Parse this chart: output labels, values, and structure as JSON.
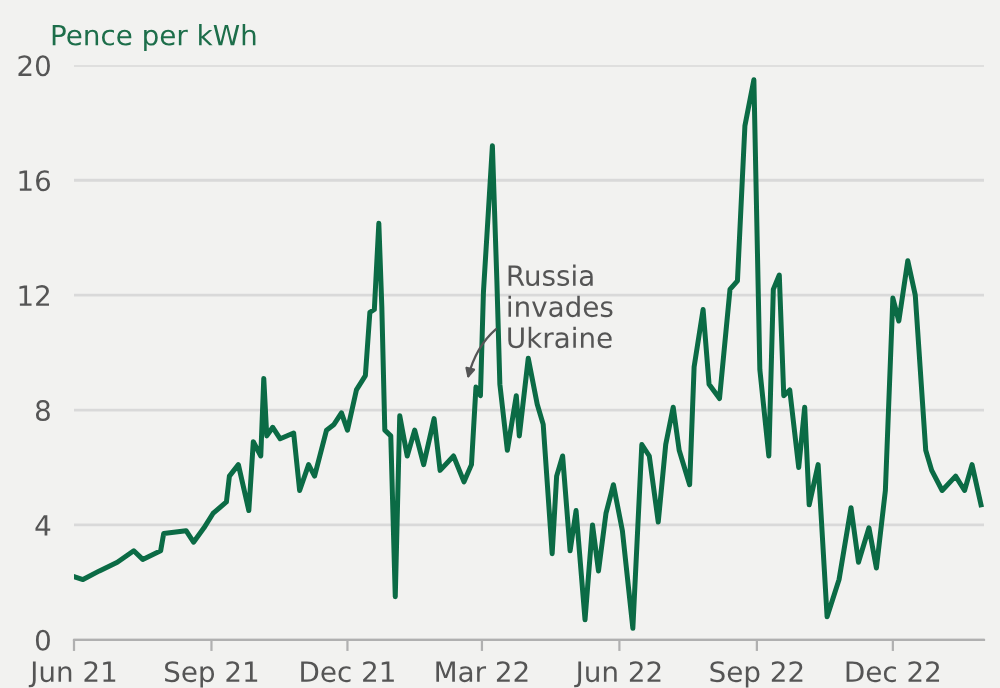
{
  "chart_data": {
    "type": "line",
    "ylabel": "Pence per kWh",
    "x": [
      "2021-06-01",
      "2021-06-07",
      "2021-06-18",
      "2021-06-30",
      "2021-07-11",
      "2021-07-17",
      "2021-07-29",
      "2021-07-31",
      "2021-08-15",
      "2021-08-20",
      "2021-08-27",
      "2021-09-02",
      "2021-09-11",
      "2021-09-13",
      "2021-09-19",
      "2021-09-26",
      "2021-09-29",
      "2021-10-04",
      "2021-10-06",
      "2021-10-08",
      "2021-10-12",
      "2021-10-17",
      "2021-10-26",
      "2021-10-30",
      "2021-11-05",
      "2021-11-09",
      "2021-11-17",
      "2021-11-22",
      "2021-11-27",
      "2021-12-01",
      "2021-12-07",
      "2021-12-13",
      "2021-12-16",
      "2021-12-19",
      "2021-12-22",
      "2021-12-24",
      "2021-12-26",
      "2021-12-30",
      "2022-01-02",
      "2022-01-05",
      "2022-01-10",
      "2022-01-15",
      "2022-01-21",
      "2022-01-28",
      "2022-02-01",
      "2022-02-10",
      "2022-02-17",
      "2022-02-22",
      "2022-02-25",
      "2022-02-28",
      "2022-03-02",
      "2022-03-06",
      "2022-03-08",
      "2022-03-11",
      "2022-03-13",
      "2022-03-18",
      "2022-03-24",
      "2022-03-26",
      "2022-04-01",
      "2022-04-07",
      "2022-04-11",
      "2022-04-17",
      "2022-04-20",
      "2022-04-24",
      "2022-04-29",
      "2022-05-03",
      "2022-05-09",
      "2022-05-14",
      "2022-05-18",
      "2022-05-23",
      "2022-05-28",
      "2022-06-03",
      "2022-06-10",
      "2022-06-16",
      "2022-06-21",
      "2022-06-27",
      "2022-07-02",
      "2022-07-07",
      "2022-07-11",
      "2022-07-18",
      "2022-07-21",
      "2022-07-27",
      "2022-07-31",
      "2022-08-07",
      "2022-08-14",
      "2022-08-19",
      "2022-08-24",
      "2022-08-30",
      "2022-09-03",
      "2022-09-09",
      "2022-09-12",
      "2022-09-16",
      "2022-09-19",
      "2022-09-23",
      "2022-09-29",
      "2022-10-03",
      "2022-10-06",
      "2022-10-12",
      "2022-10-18",
      "2022-10-26",
      "2022-11-03",
      "2022-11-08",
      "2022-11-15",
      "2022-11-20",
      "2022-11-26",
      "2022-12-01",
      "2022-12-05",
      "2022-12-11",
      "2022-12-16",
      "2022-12-23",
      "2022-12-27",
      "2023-01-03",
      "2023-01-12",
      "2023-01-18",
      "2023-01-23",
      "2023-01-29"
    ],
    "series": [
      {
        "color": "#0b6b45",
        "values": [
          2.2,
          2.1,
          2.4,
          2.7,
          3.1,
          2.8,
          3.1,
          3.7,
          3.8,
          3.4,
          3.9,
          4.4,
          4.8,
          5.7,
          6.1,
          4.5,
          6.9,
          6.4,
          9.1,
          7.1,
          7.4,
          7.0,
          7.2,
          5.2,
          6.1,
          5.7,
          7.3,
          7.5,
          7.9,
          7.3,
          8.7,
          9.2,
          11.4,
          11.5,
          14.5,
          11.6,
          7.3,
          7.1,
          1.5,
          7.8,
          6.4,
          7.3,
          6.1,
          7.7,
          5.9,
          6.4,
          5.5,
          6.1,
          8.8,
          8.5,
          12.1,
          15.5,
          17.2,
          12.5,
          8.9,
          6.6,
          8.5,
          7.1,
          9.8,
          8.2,
          7.5,
          3.0,
          5.7,
          6.4,
          3.1,
          4.5,
          0.7,
          4.0,
          2.4,
          4.4,
          5.4,
          3.8,
          0.4,
          6.8,
          6.4,
          4.1,
          6.8,
          8.1,
          6.6,
          5.4,
          9.5,
          11.5,
          8.9,
          8.4,
          12.2,
          12.5,
          17.9,
          19.5,
          9.4,
          6.4,
          12.2,
          12.7,
          8.5,
          8.7,
          6.0,
          8.1,
          4.7,
          6.1,
          0.8,
          2.1,
          4.6,
          2.7,
          3.9,
          2.5,
          5.2,
          11.9,
          11.1,
          13.2,
          12.0,
          6.6,
          5.9,
          5.2,
          5.7,
          5.2,
          6.1,
          4.7
        ]
      }
    ],
    "xlim": [
      "2021-06-01",
      "2023-01-31"
    ],
    "xticks": [
      {
        "value": "2021-06-01",
        "label": "Jun 21"
      },
      {
        "value": "2021-09-01",
        "label": "Sep 21"
      },
      {
        "value": "2021-12-01",
        "label": "Dec 21"
      },
      {
        "value": "2022-03-01",
        "label": "Mar 22"
      },
      {
        "value": "2022-06-01",
        "label": "Jun 22"
      },
      {
        "value": "2022-09-01",
        "label": "Sep 22"
      },
      {
        "value": "2022-12-01",
        "label": "Dec 22"
      }
    ],
    "ylim": [
      0,
      20
    ],
    "yticks": [
      0,
      4,
      8,
      12,
      16,
      20
    ],
    "grid": "y",
    "legend": false,
    "annotations": [
      {
        "text": "Russia\ninvades\nUkraine",
        "x": "2022-02-19",
        "y": 9.0
      }
    ]
  }
}
